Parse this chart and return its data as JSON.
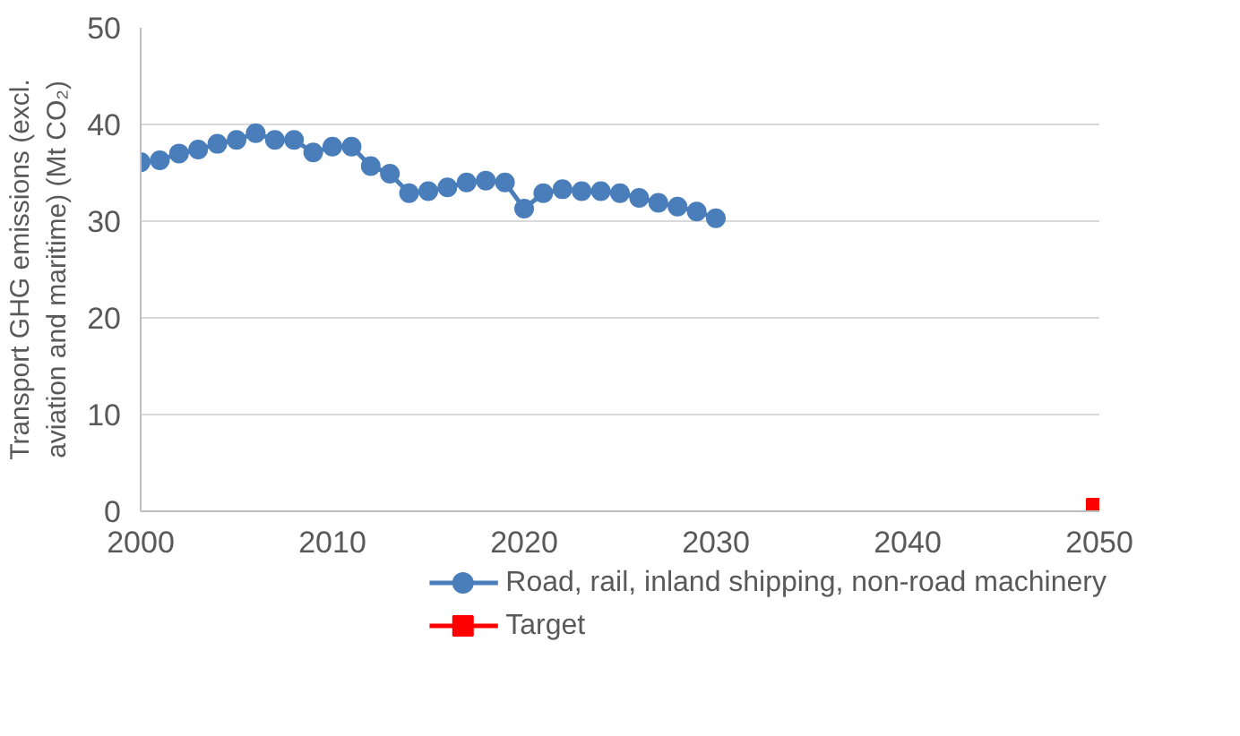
{
  "chart_data": {
    "type": "line",
    "ylabel": "Transport GHG emissions (excl. aviation and maritime) (Mt CO₂)",
    "xlim": [
      2000,
      2050
    ],
    "xticks": [
      2000,
      2010,
      2020,
      2030,
      2040,
      2050
    ],
    "ylim": [
      0,
      50
    ],
    "yticks": [
      0,
      10,
      20,
      30,
      40,
      50
    ],
    "grid": "y",
    "legend": "bottom",
    "line_style": "solid",
    "marker": "circle",
    "series": [
      {
        "name": "Road, rail, inland shipping, non-road machinery",
        "color": "#4a7ebb",
        "x": [
          2000,
          2001,
          2002,
          2003,
          2004,
          2005,
          2006,
          2007,
          2008,
          2009,
          2010,
          2011,
          2012,
          2013,
          2014,
          2015,
          2016,
          2017,
          2018,
          2019,
          2020,
          2021,
          2022,
          2023,
          2024,
          2025,
          2026,
          2027,
          2028,
          2029,
          2030
        ],
        "values": [
          36.1,
          36.3,
          37.0,
          37.4,
          38.0,
          38.4,
          39.1,
          38.4,
          38.4,
          37.1,
          37.7,
          37.7,
          35.7,
          34.9,
          32.9,
          33.1,
          33.5,
          34.0,
          34.2,
          34.0,
          31.3,
          32.9,
          33.3,
          33.1,
          33.1,
          32.9,
          32.4,
          31.9,
          31.5,
          31.0,
          30.3
        ]
      },
      {
        "name": "Target",
        "color": "#ff0000",
        "marker": "square",
        "x": [
          2050
        ],
        "values": [
          0
        ]
      }
    ]
  }
}
